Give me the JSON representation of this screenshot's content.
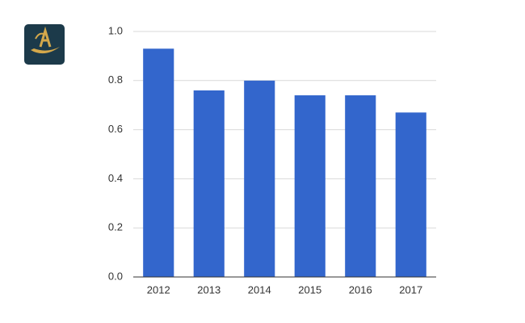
{
  "chart_data": {
    "type": "bar",
    "categories": [
      "2012",
      "2013",
      "2014",
      "2015",
      "2016",
      "2017"
    ],
    "values": [
      0.93,
      0.76,
      0.8,
      0.74,
      0.74,
      0.67
    ],
    "color": "#3366cc",
    "ylim": [
      0,
      1
    ],
    "yticks": [
      {
        "value": 0,
        "label": "0.0"
      },
      0.2,
      0.4,
      0.6,
      0.8,
      {
        "value": 1,
        "label": "1.0"
      }
    ],
    "grid": true
  }
}
